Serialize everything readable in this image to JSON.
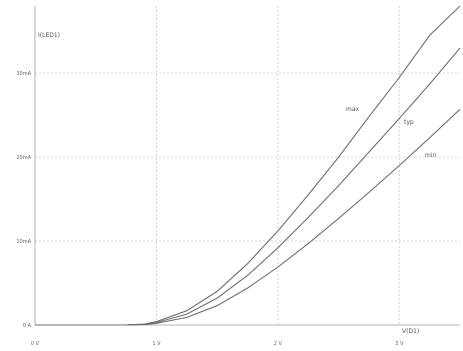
{
  "chart_data": {
    "type": "line",
    "xlabel": "V(D1)",
    "ylabel": "I(LED1)",
    "x_unit": "V",
    "y_unit": "mA",
    "xlim": [
      0,
      3.5
    ],
    "ylim": [
      0,
      38
    ],
    "x_ticks": [
      0,
      1,
      2,
      3
    ],
    "x_tick_labels": [
      "0 V",
      "1 V",
      "2 V",
      "3 V"
    ],
    "y_ticks": [
      0,
      10,
      20,
      30
    ],
    "y_tick_labels": [
      "0 A",
      "10mA",
      "20mA",
      "30mA"
    ],
    "grid": true,
    "series": [
      {
        "name": "max",
        "x": [
          0,
          0.5,
          0.75,
          0.9,
          1.0,
          1.25,
          1.5,
          1.75,
          2.0,
          2.25,
          2.5,
          2.75,
          3.0,
          3.25,
          3.5
        ],
        "y": [
          0,
          0,
          0,
          0.1,
          0.4,
          1.7,
          4.0,
          7.3,
          11.2,
          15.5,
          20.0,
          24.8,
          29.5,
          34.5,
          39.5
        ]
      },
      {
        "name": "typ",
        "x": [
          0,
          0.5,
          0.75,
          0.9,
          1.0,
          1.25,
          1.5,
          1.75,
          2.0,
          2.25,
          2.5,
          2.75,
          3.0,
          3.25,
          3.5
        ],
        "y": [
          0,
          0,
          0,
          0.1,
          0.3,
          1.3,
          3.2,
          5.9,
          9.2,
          12.8,
          16.6,
          20.6,
          24.6,
          28.7,
          33.0
        ]
      },
      {
        "name": "min",
        "x": [
          0,
          0.5,
          0.75,
          0.9,
          1.0,
          1.25,
          1.5,
          1.75,
          2.0,
          2.25,
          2.5,
          2.75,
          3.0,
          3.25,
          3.5
        ],
        "y": [
          0,
          0,
          0,
          0.05,
          0.2,
          0.9,
          2.3,
          4.4,
          6.9,
          9.7,
          12.7,
          15.8,
          19.0,
          22.3,
          25.7
        ]
      }
    ],
    "curve_labels": [
      "max",
      "typ",
      "min"
    ]
  }
}
